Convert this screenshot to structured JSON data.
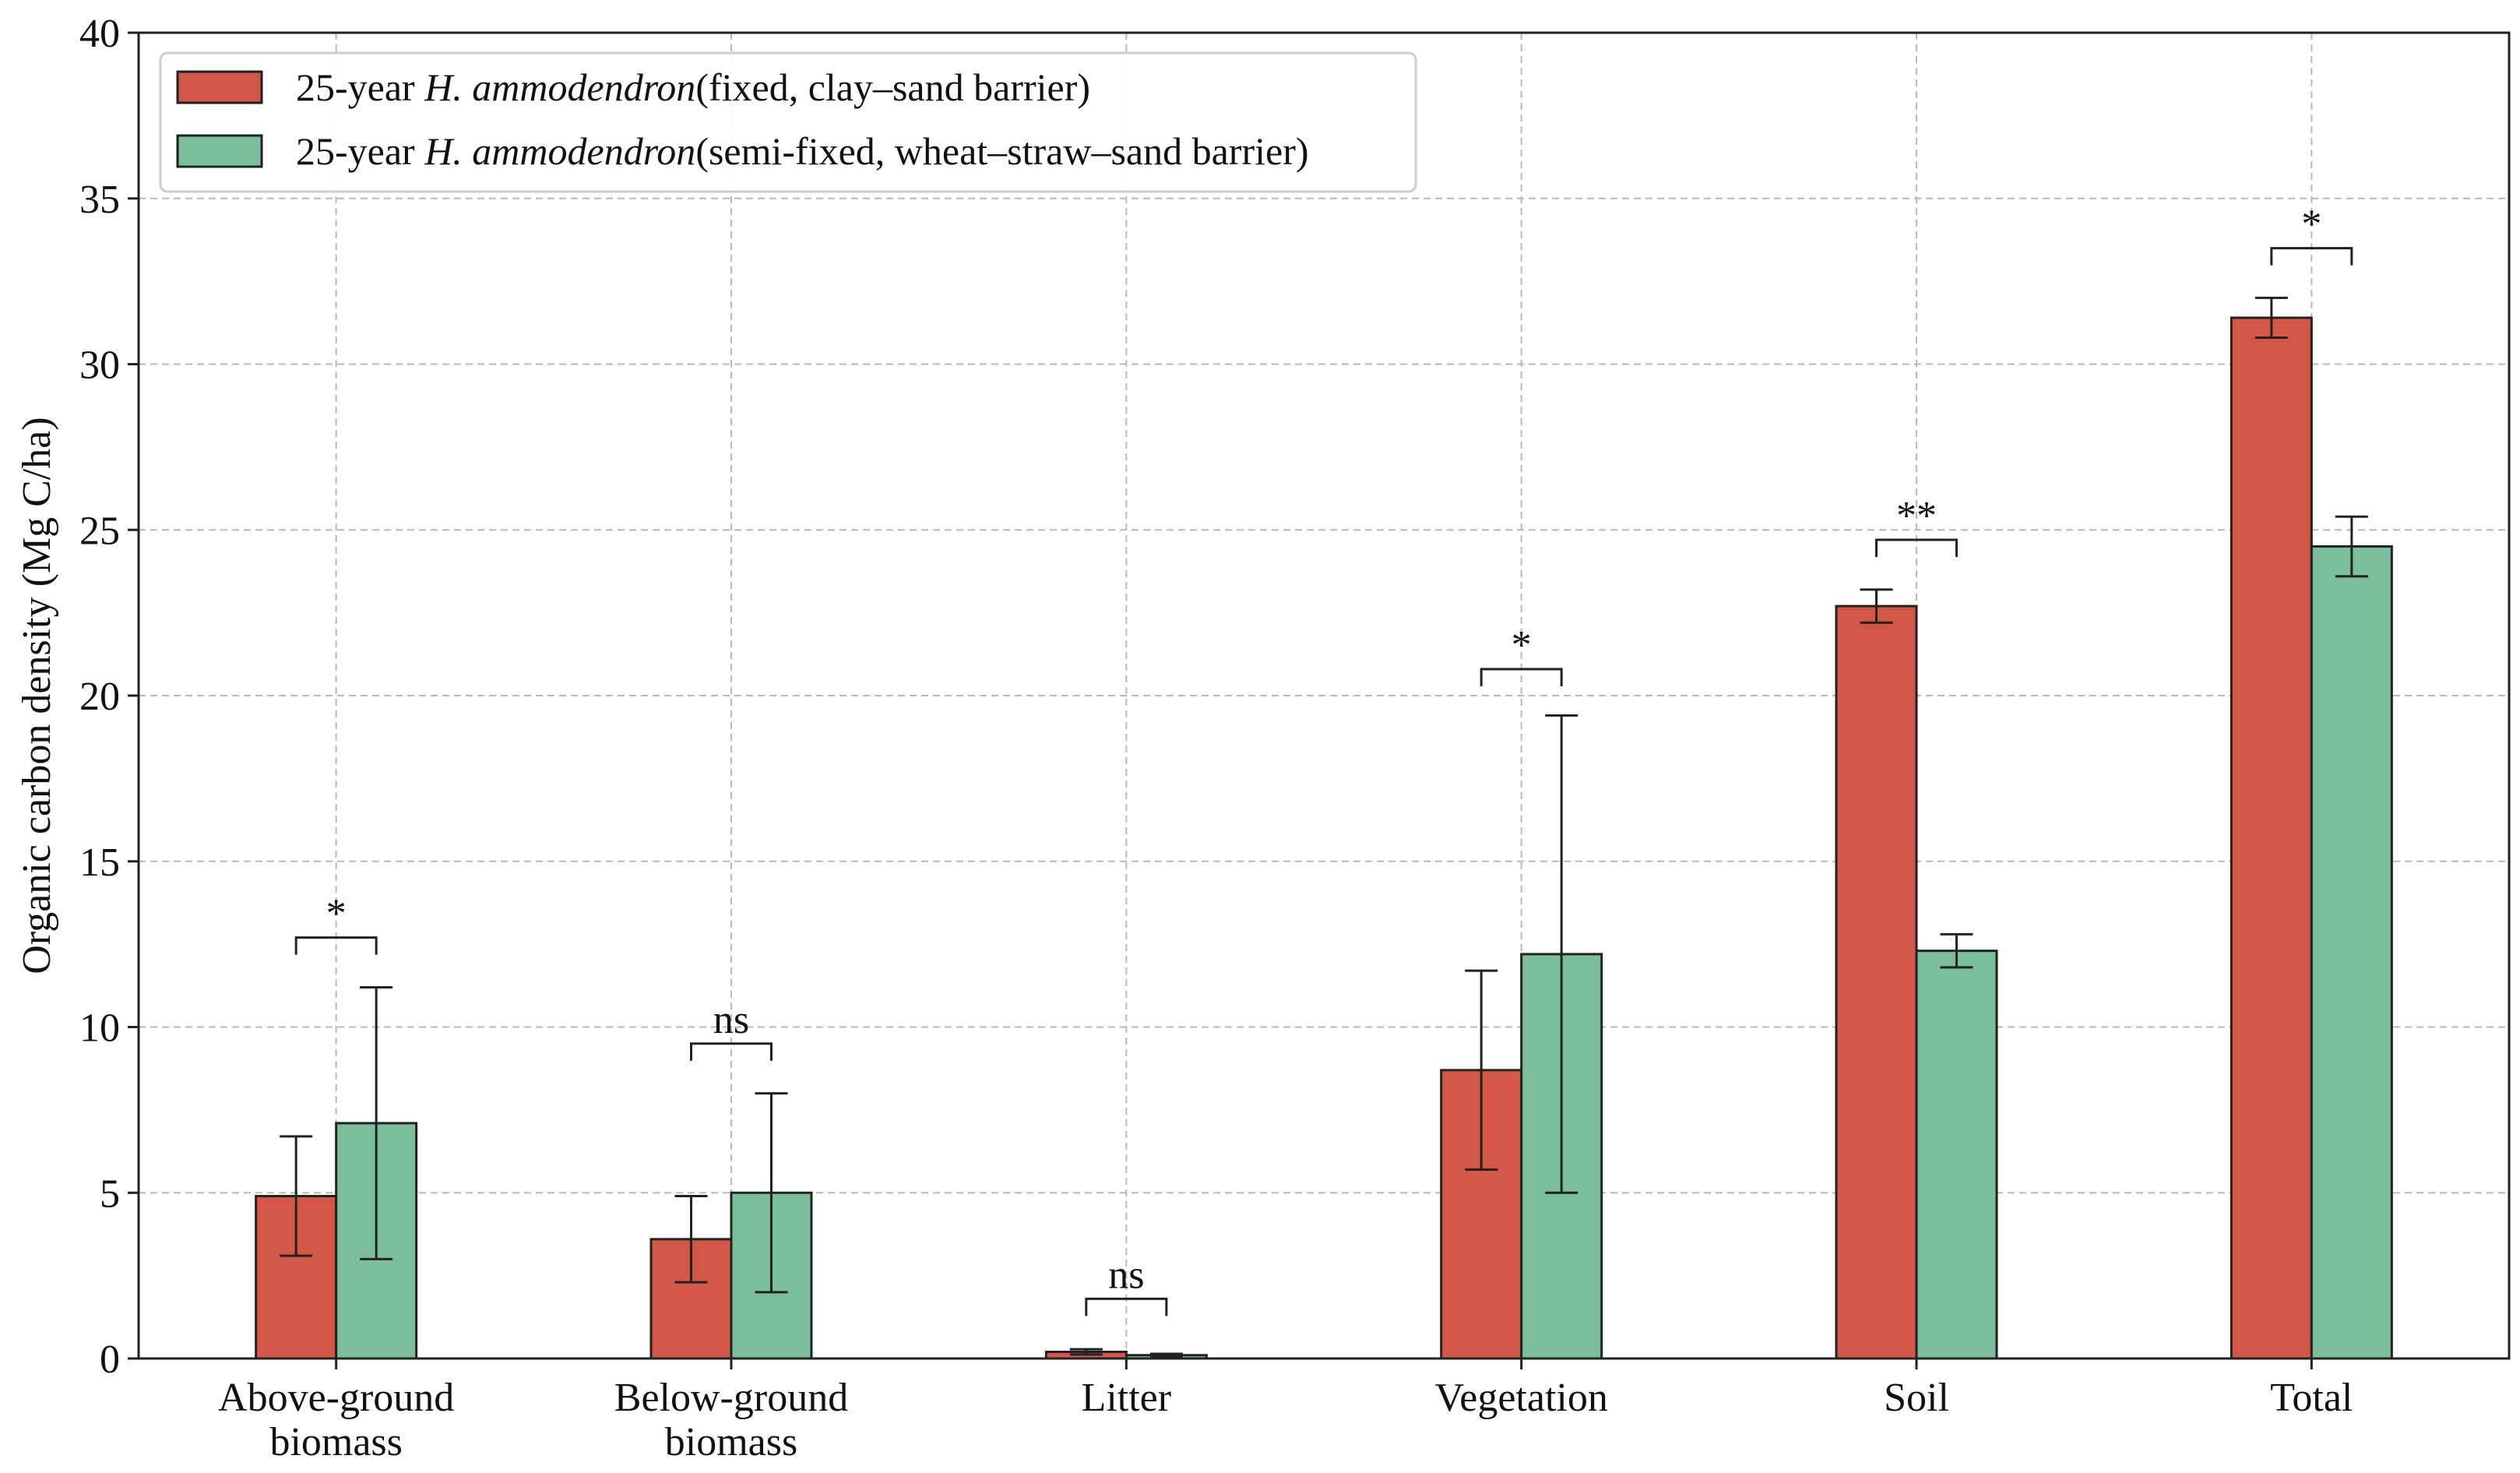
{
  "chart_data": {
    "type": "bar",
    "ylabel": "Organic carbon density (Mg C/ha)",
    "xlabel": "",
    "ylim": [
      0,
      40
    ],
    "yticks": [
      "0",
      "5",
      "10",
      "15",
      "20",
      "25",
      "30",
      "35",
      "40"
    ],
    "grid": true,
    "legend_position": "top-left",
    "categories": [
      [
        "Above-ground",
        "biomass"
      ],
      [
        "Below-ground",
        "biomass"
      ],
      [
        "Litter"
      ],
      [
        "Vegetation"
      ],
      [
        "Soil"
      ],
      [
        "Total"
      ]
    ],
    "series": [
      {
        "name_prefix": "25-year ",
        "name_italic": "H. ammodendron",
        "name_suffix": "(fixed, clay–sand barrier)",
        "color": "#d35746",
        "values": [
          4.9,
          3.6,
          0.2,
          8.7,
          22.7,
          31.4
        ],
        "errors": [
          1.8,
          1.3,
          0.08,
          3.0,
          0.5,
          0.6
        ]
      },
      {
        "name_prefix": "25-year ",
        "name_italic": "H. ammodendron",
        "name_suffix": "(semi-fixed, wheat–straw–sand barrier)",
        "color": "#7bbf9a",
        "values": [
          7.1,
          5.0,
          0.1,
          12.2,
          12.3,
          24.5
        ],
        "errors": [
          4.1,
          3.0,
          0.04,
          7.2,
          0.5,
          0.9
        ]
      }
    ],
    "significance": [
      "*",
      "ns",
      "ns",
      "*",
      "**",
      "*"
    ],
    "significance_bracket_y": [
      12.7,
      9.5,
      1.8,
      20.8,
      24.7,
      33.5
    ]
  }
}
